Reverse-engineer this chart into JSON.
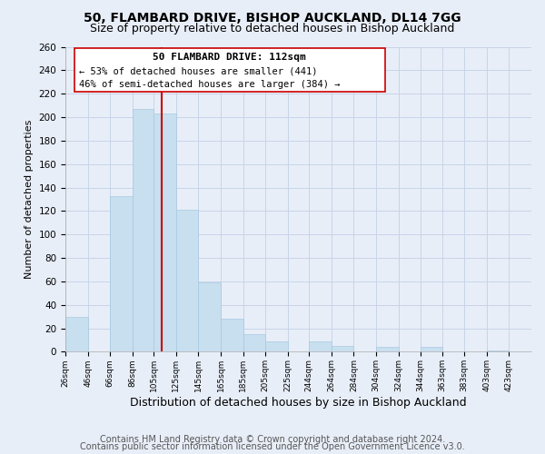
{
  "title": "50, FLAMBARD DRIVE, BISHOP AUCKLAND, DL14 7GG",
  "subtitle": "Size of property relative to detached houses in Bishop Auckland",
  "xlabel": "Distribution of detached houses by size in Bishop Auckland",
  "ylabel": "Number of detached properties",
  "bar_left_edges": [
    26,
    46,
    66,
    86,
    105,
    125,
    145,
    165,
    185,
    205,
    225,
    244,
    264,
    284,
    304,
    324,
    344,
    363,
    383,
    403
  ],
  "bar_heights": [
    30,
    0,
    133,
    207,
    203,
    121,
    59,
    28,
    15,
    9,
    0,
    9,
    5,
    0,
    4,
    0,
    4,
    0,
    0,
    1
  ],
  "bar_widths": [
    20,
    20,
    20,
    19,
    20,
    20,
    20,
    20,
    20,
    20,
    19,
    20,
    20,
    20,
    20,
    20,
    19,
    20,
    20,
    20
  ],
  "bar_color": "#c8dff0",
  "bar_edgecolor": "#a8c8e0",
  "reference_line_x": 112,
  "reference_line_color": "#cc0000",
  "annotation_title": "50 FLAMBARD DRIVE: 112sqm",
  "annotation_line1": "← 53% of detached houses are smaller (441)",
  "annotation_line2": "46% of semi-detached houses are larger (384) →",
  "xlim": [
    26,
    443
  ],
  "ylim": [
    0,
    260
  ],
  "yticks": [
    0,
    20,
    40,
    60,
    80,
    100,
    120,
    140,
    160,
    180,
    200,
    220,
    240,
    260
  ],
  "xtick_labels": [
    "26sqm",
    "46sqm",
    "66sqm",
    "86sqm",
    "105sqm",
    "125sqm",
    "145sqm",
    "165sqm",
    "185sqm",
    "205sqm",
    "225sqm",
    "244sqm",
    "264sqm",
    "284sqm",
    "304sqm",
    "324sqm",
    "344sqm",
    "363sqm",
    "383sqm",
    "403sqm",
    "423sqm"
  ],
  "xtick_positions": [
    26,
    46,
    66,
    86,
    105,
    125,
    145,
    165,
    185,
    205,
    225,
    244,
    264,
    284,
    304,
    324,
    344,
    363,
    383,
    403,
    423
  ],
  "footer_line1": "Contains HM Land Registry data © Crown copyright and database right 2024.",
  "footer_line2": "Contains public sector information licensed under the Open Government Licence v3.0.",
  "grid_color": "#c8d4e8",
  "background_color": "#e8eef8",
  "title_fontsize": 10,
  "subtitle_fontsize": 9,
  "xlabel_fontsize": 9,
  "ylabel_fontsize": 8,
  "footer_fontsize": 7,
  "annotation_fontsize_title": 8,
  "annotation_fontsize_text": 7.5
}
